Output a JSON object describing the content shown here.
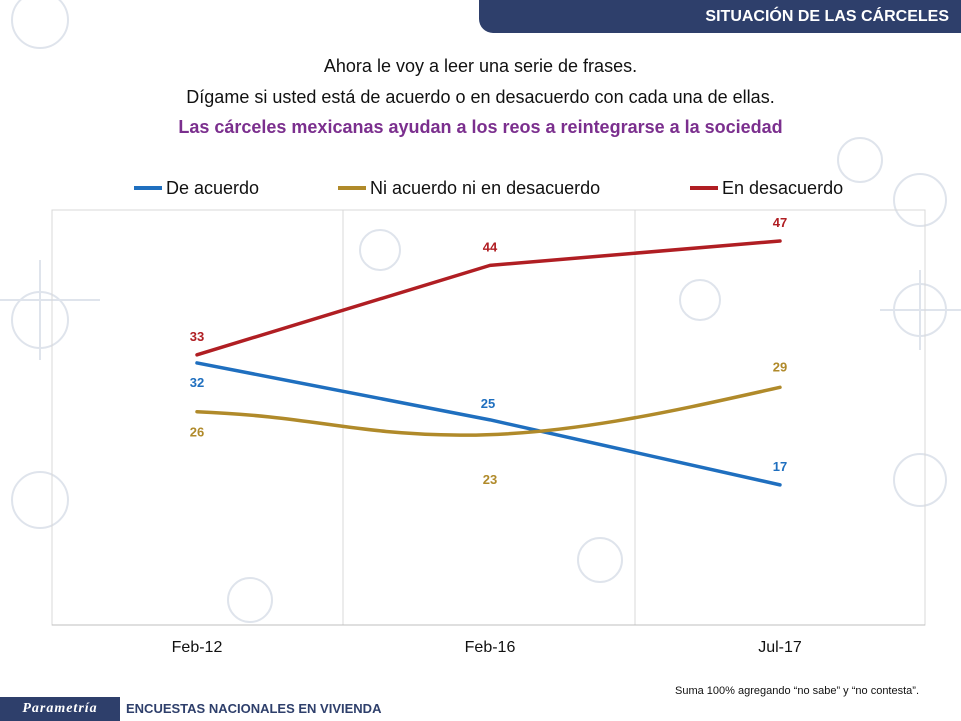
{
  "header": {
    "section_title": "SITUACIÓN DE LAS CÁRCELES"
  },
  "question": {
    "line1": "Ahora le voy a leer una serie de frases.",
    "line2": "Dígame si usted está de acuerdo o en desacuerdo con cada una de ellas.",
    "statement": "Las cárceles mexicanas ayudan a los reos a reintegrarse a la sociedad"
  },
  "chart_data": {
    "type": "line",
    "categories": [
      "Feb-12",
      "Feb-16",
      "Jul-17"
    ],
    "series": [
      {
        "name": "De acuerdo",
        "color": "#1f6fbf",
        "values": [
          32,
          25,
          17
        ]
      },
      {
        "name": "Ni acuerdo ni en desacuerdo",
        "color": "#b08a2a",
        "values": [
          26,
          23,
          29
        ]
      },
      {
        "name": "En desacuerdo",
        "color": "#b01e23",
        "values": [
          33,
          44,
          47
        ]
      }
    ],
    "ylim": [
      0,
      50
    ],
    "grid": true,
    "legend": "top"
  },
  "footnote": "Suma 100% agregando “no sabe” y “no contesta”.",
  "footer": {
    "brand": "Parametría",
    "text": "ENCUESTAS NACIONALES EN VIVIENDA"
  }
}
